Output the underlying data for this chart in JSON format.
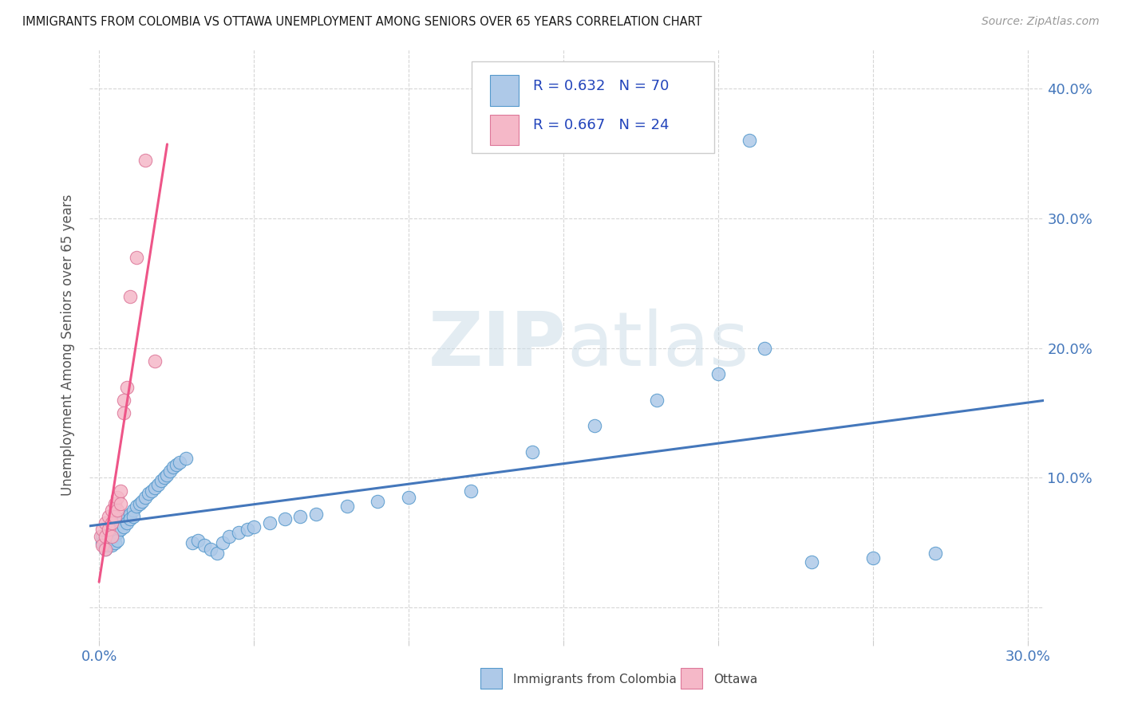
{
  "title": "IMMIGRANTS FROM COLOMBIA VS OTTAWA UNEMPLOYMENT AMONG SENIORS OVER 65 YEARS CORRELATION CHART",
  "source": "Source: ZipAtlas.com",
  "ylabel": "Unemployment Among Seniors over 65 years",
  "xlim": [
    -0.003,
    0.305
  ],
  "ylim": [
    -0.025,
    0.43
  ],
  "watermark_zip": "ZIP",
  "watermark_atlas": "atlas",
  "R1": 0.632,
  "N1": 70,
  "R2": 0.667,
  "N2": 24,
  "legend_label1": "Immigrants from Colombia",
  "legend_label2": "Ottawa",
  "color_blue_fill": "#aec9e8",
  "color_blue_edge": "#5599cc",
  "color_blue_line": "#4477bb",
  "color_pink_fill": "#f5b8c8",
  "color_pink_edge": "#dd7799",
  "color_pink_line": "#ee5588",
  "yticks": [
    0.0,
    0.1,
    0.2,
    0.3,
    0.4
  ],
  "ytick_labels": [
    "",
    "10.0%",
    "20.0%",
    "30.0%",
    "40.0%"
  ],
  "blue_x": [
    0.001,
    0.001,
    0.002,
    0.002,
    0.002,
    0.003,
    0.003,
    0.003,
    0.004,
    0.004,
    0.004,
    0.005,
    0.005,
    0.005,
    0.006,
    0.006,
    0.006,
    0.007,
    0.007,
    0.008,
    0.008,
    0.009,
    0.009,
    0.01,
    0.01,
    0.011,
    0.011,
    0.012,
    0.013,
    0.014,
    0.015,
    0.016,
    0.017,
    0.018,
    0.019,
    0.02,
    0.021,
    0.022,
    0.023,
    0.024,
    0.025,
    0.026,
    0.028,
    0.03,
    0.032,
    0.034,
    0.036,
    0.038,
    0.04,
    0.042,
    0.045,
    0.048,
    0.05,
    0.055,
    0.06,
    0.065,
    0.07,
    0.08,
    0.09,
    0.1,
    0.12,
    0.14,
    0.16,
    0.18,
    0.2,
    0.215,
    0.23,
    0.25,
    0.27,
    0.21
  ],
  "blue_y": [
    0.055,
    0.05,
    0.048,
    0.052,
    0.045,
    0.05,
    0.055,
    0.048,
    0.058,
    0.052,
    0.048,
    0.06,
    0.055,
    0.05,
    0.062,
    0.058,
    0.052,
    0.065,
    0.06,
    0.068,
    0.062,
    0.07,
    0.065,
    0.072,
    0.068,
    0.075,
    0.07,
    0.078,
    0.08,
    0.082,
    0.085,
    0.088,
    0.09,
    0.092,
    0.095,
    0.098,
    0.1,
    0.102,
    0.105,
    0.108,
    0.11,
    0.112,
    0.115,
    0.05,
    0.052,
    0.048,
    0.045,
    0.042,
    0.05,
    0.055,
    0.058,
    0.06,
    0.062,
    0.065,
    0.068,
    0.07,
    0.072,
    0.078,
    0.082,
    0.085,
    0.09,
    0.12,
    0.14,
    0.16,
    0.18,
    0.2,
    0.035,
    0.038,
    0.042,
    0.36
  ],
  "pink_x": [
    0.0005,
    0.001,
    0.001,
    0.002,
    0.002,
    0.002,
    0.003,
    0.003,
    0.004,
    0.004,
    0.004,
    0.005,
    0.005,
    0.006,
    0.006,
    0.007,
    0.007,
    0.008,
    0.008,
    0.009,
    0.01,
    0.012,
    0.015,
    0.018
  ],
  "pink_y": [
    0.055,
    0.06,
    0.048,
    0.065,
    0.055,
    0.045,
    0.07,
    0.06,
    0.075,
    0.065,
    0.055,
    0.08,
    0.07,
    0.085,
    0.075,
    0.09,
    0.08,
    0.16,
    0.15,
    0.17,
    0.24,
    0.27,
    0.345,
    0.19
  ]
}
